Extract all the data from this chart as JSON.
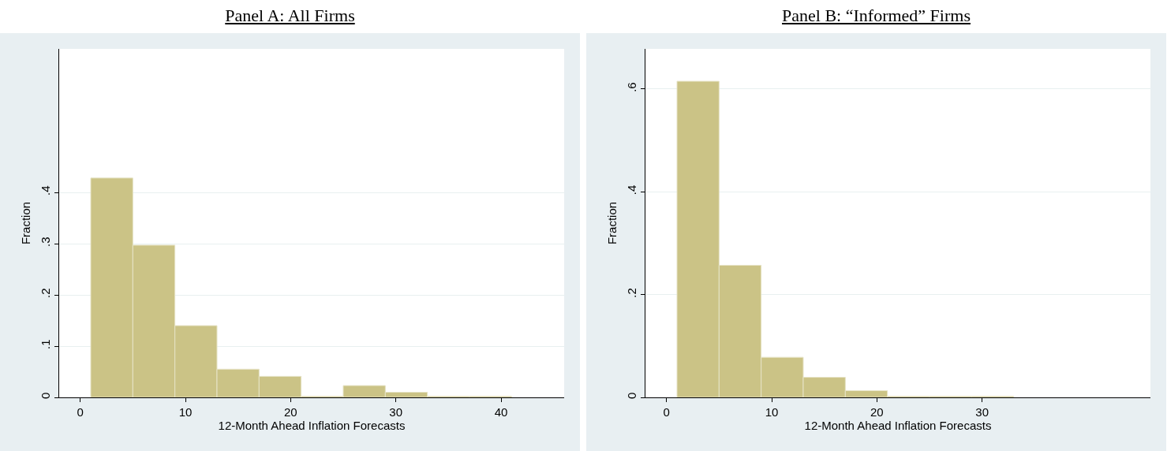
{
  "chart_data": [
    {
      "type": "histogram",
      "title": "Panel A: All Firms",
      "xlabel": "12-Month Ahead Inflation Forecasts",
      "ylabel": "Fraction",
      "color": "#cbc386",
      "bins": [
        1,
        5,
        9,
        13,
        17,
        21,
        25,
        29,
        33,
        37,
        41
      ],
      "values": [
        0.428,
        0.297,
        0.14,
        0.055,
        0.041,
        0.002,
        0.023,
        0.01,
        0.002,
        0.002
      ],
      "xlim": [
        -2,
        46
      ],
      "xticks": [
        0,
        10,
        20,
        30,
        40
      ],
      "ylim": [
        0,
        0.68
      ],
      "yticks": [
        0,
        {
          "value": 0.1,
          "label": ".1"
        },
        {
          "value": 0.2,
          "label": ".2"
        },
        {
          "value": 0.3,
          "label": ".3"
        },
        {
          "value": 0.4,
          "label": ".4"
        }
      ],
      "grid": "y"
    },
    {
      "type": "histogram",
      "title": "Panel B: “Informed” Firms",
      "xlabel": "12-Month Ahead Inflation Forecasts",
      "ylabel": "Fraction",
      "color": "#cbc386",
      "bins": [
        1,
        5,
        9,
        13,
        17,
        21,
        25,
        29,
        33
      ],
      "values": [
        0.615,
        0.257,
        0.078,
        0.039,
        0.013,
        0.002,
        0.002,
        0.002
      ],
      "xlim": [
        -2,
        46
      ],
      "xticks": [
        0,
        10,
        20,
        30
      ],
      "ylim": [
        0,
        0.678
      ],
      "yticks": [
        0,
        {
          "value": 0.2,
          "label": ".2"
        },
        {
          "value": 0.4,
          "label": ".4"
        },
        {
          "value": 0.6,
          "label": ".6"
        }
      ],
      "grid": "y"
    }
  ]
}
